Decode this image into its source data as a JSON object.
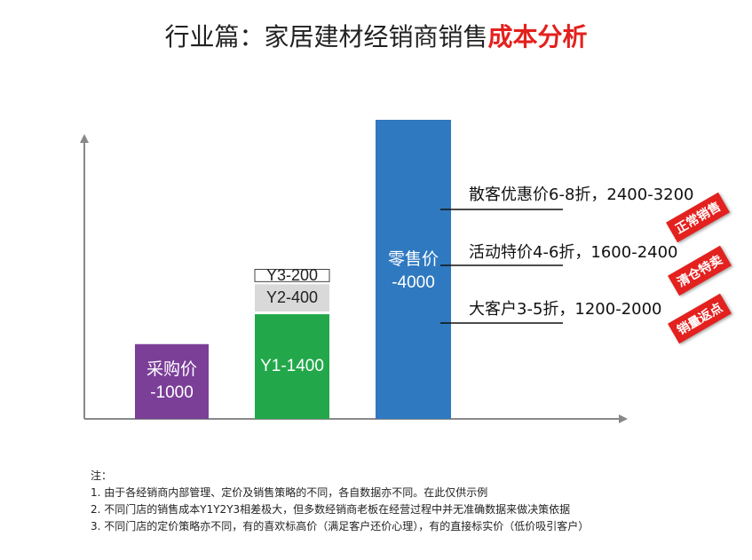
{
  "title": {
    "main": "行业篇：家居建材经销商销售",
    "highlight": "成本分析"
  },
  "colors": {
    "purchase": "#7b3f98",
    "y1": "#22a84a",
    "y2": "#d9d9d9",
    "y3": "#ffffff",
    "retail": "#2f79c0",
    "accent": "#e3211e",
    "axis": "#888888"
  },
  "chart_data": {
    "type": "bar",
    "bars": [
      {
        "category": "采购价",
        "label_lines": [
          "采购价",
          "-1000"
        ],
        "value": 1000,
        "color": "#7b3f98"
      },
      {
        "category": "Y",
        "stacked": [
          {
            "label": "Y1-1400",
            "value": 1400,
            "color": "#22a84a"
          },
          {
            "label": "Y2-400",
            "value": 400,
            "color": "#d9d9d9"
          },
          {
            "label": "Y3-200",
            "value": 200,
            "color": "#ffffff"
          }
        ]
      },
      {
        "category": "零售价",
        "label_lines": [
          "零售价",
          "-4000"
        ],
        "value": 4000,
        "color": "#2f79c0"
      }
    ],
    "ylim": [
      0,
      4000
    ],
    "annotations": [
      {
        "text": "散客优惠价6-8折，2400-3200",
        "badge": "正常销售"
      },
      {
        "text": "活动特价4-6折，1600-2400",
        "badge": "清仓特卖"
      },
      {
        "text": "大客户3-5折，1200-2000",
        "badge": "销量返点"
      }
    ]
  },
  "notes": [
    "注：",
    "1. 由于各经销商内部管理、定价及销售策略的不同，各自数据亦不同。在此仅供示例",
    "2. 不同门店的销售成本Y1Y2Y3相差极大，但多数经销商老板在经营过程中并无准确数据来做决策依据",
    "3. 不同门店的定价策略亦不同，有的喜欢标高价（满足客户还价心理），有的直接标实价（低价吸引客户）"
  ]
}
